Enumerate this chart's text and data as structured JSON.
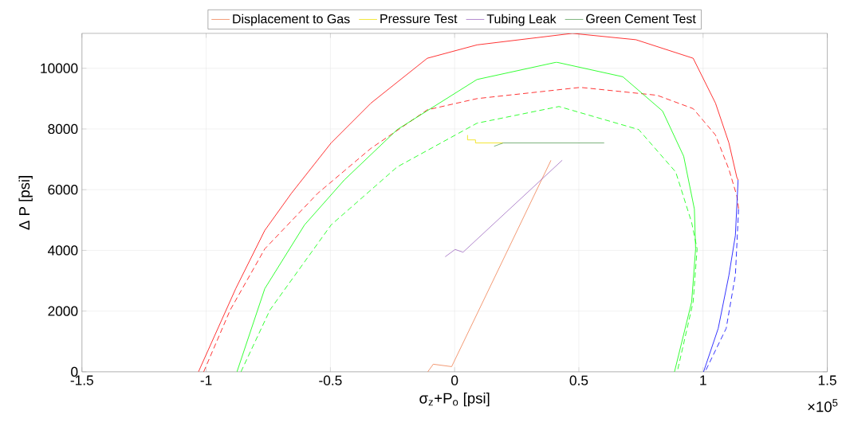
{
  "chart_data": {
    "type": "line",
    "xlabel": "σ$_{z}$+P$_{o}$ [psi]",
    "ylabel": "Δ P [psi]",
    "annotations": [
      "×10$^{5}$"
    ],
    "xlim": [
      -1.5,
      1.5
    ],
    "ylim": [
      0,
      11150
    ],
    "xticks": [
      -1.5,
      -1,
      -0.5,
      0,
      0.5,
      1,
      1.5
    ],
    "yticks": [
      0,
      2000,
      4000,
      6000,
      8000,
      10000
    ],
    "grid": true,
    "legend": "top",
    "series": [
      {
        "name": "Displacement to Gas",
        "color": "#f08050",
        "x": [
          -0.108,
          -0.086,
          -0.012,
          0.388
        ],
        "values": [
          0,
          250,
          170,
          6970
        ]
      },
      {
        "name": "Pressure Test",
        "color": "#f0e000",
        "x": [
          0.052,
          0.052,
          0.084,
          0.084,
          0.196
        ],
        "values": [
          7800,
          7640,
          7640,
          7540,
          7540
        ]
      },
      {
        "name": "Tubing Leak",
        "color": "#9e6ac0",
        "x": [
          -0.038,
          0.002,
          0.034,
          0.433
        ],
        "values": [
          3790,
          4030,
          3940,
          6970
        ]
      },
      {
        "name": "Green Cement Test",
        "color": "#5aa05a",
        "x": [
          0.159,
          0.196,
          0.602
        ],
        "values": [
          7430,
          7540,
          7540
        ]
      },
      {
        "color": "#ff0000",
        "line_style": "solid",
        "x": [
          -1.031,
          -0.881,
          -0.764,
          -0.657,
          -0.497,
          -0.337,
          -0.11,
          0.09,
          0.474,
          0.73,
          0.96,
          1.05,
          1.104,
          1.136,
          1.141
        ],
        "values": [
          0,
          2740,
          4660,
          5880,
          7540,
          8850,
          10330,
          10770,
          11150,
          10940,
          10330,
          8850,
          7540,
          6400,
          6320
        ]
      },
      {
        "color": "#ff0000",
        "line_style": "dashed",
        "x": [
          -1.01,
          -0.903,
          -0.764,
          -0.551,
          -0.337,
          -0.11,
          0.09,
          0.506,
          0.815,
          0.96,
          1.05,
          1.104,
          1.136,
          1.143
        ],
        "values": [
          0,
          2040,
          4050,
          5880,
          7360,
          8630,
          9000,
          9370,
          9110,
          8670,
          7800,
          6670,
          5790,
          5370
        ]
      },
      {
        "color": "#0000ff",
        "line_style": "solid",
        "x": [
          1.141,
          1.13,
          1.104,
          1.061,
          1.002
        ],
        "values": [
          6320,
          4490,
          3180,
          1430,
          0
        ]
      },
      {
        "color": "#0000ff",
        "line_style": "dashed",
        "x": [
          1.143,
          1.13,
          1.093,
          1.008
        ],
        "values": [
          5360,
          3180,
          1430,
          0
        ]
      },
      {
        "color": "#00ff00",
        "line_style": "solid",
        "x": [
          -0.876,
          -0.764,
          -0.604,
          -0.444,
          -0.231,
          0.09,
          0.41,
          0.677,
          0.837,
          0.922,
          0.965,
          0.97,
          0.954,
          0.885
        ],
        "values": [
          0,
          2740,
          4840,
          6320,
          7980,
          9630,
          10200,
          9720,
          8590,
          7100,
          5360,
          4050,
          2300,
          0
        ]
      },
      {
        "color": "#00ff00",
        "line_style": "dashed",
        "x": [
          -0.86,
          -0.743,
          -0.497,
          -0.231,
          0.09,
          0.42,
          0.741,
          0.89,
          0.954,
          0.976,
          0.96,
          0.896
        ],
        "values": [
          0,
          2040,
          4840,
          6750,
          8190,
          8740,
          7980,
          6580,
          4920,
          4050,
          2300,
          0
        ]
      }
    ]
  }
}
